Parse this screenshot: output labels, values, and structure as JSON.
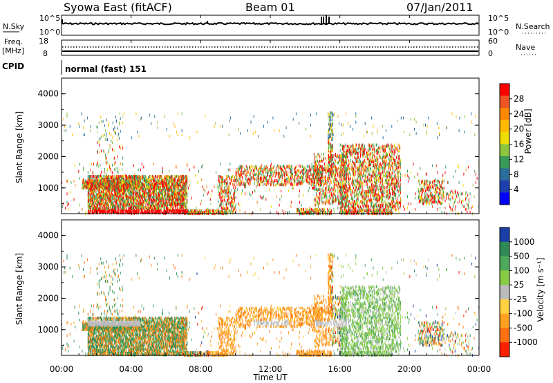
{
  "header": {
    "station": "Syowa East (fitACF)",
    "beam": "Beam 01",
    "date": "07/Jan/2011"
  },
  "noise_panel": {
    "left_label": "N.Sky",
    "right_label": "N.Search",
    "left_ticks": [
      "10^5",
      "10^0"
    ],
    "right_ticks": [
      "10^5",
      "10^0"
    ]
  },
  "freq_panel": {
    "left_label_1": "Freq.",
    "left_label_2": "[MHz]",
    "left_ticks": [
      "18",
      "8"
    ],
    "right_label": "Nave",
    "right_ticks": [
      "60",
      "0"
    ]
  },
  "cpid_panel": {
    "label": "CPID",
    "value": "normal (fast) 151"
  },
  "chart_data": [
    {
      "type": "heatmap",
      "name": "power",
      "ylabel": "Slant Range [km]",
      "yticks": [
        "4000",
        "3000",
        "2000",
        "1000"
      ],
      "ylim": [
        180,
        4500
      ],
      "xlim": [
        "00:00",
        "24:00"
      ],
      "colorbar_label": "Power [dB]",
      "colorbar_ticks": [
        "28",
        "24",
        "20",
        "16",
        "12",
        "8",
        "4"
      ],
      "colorbar_colors": [
        "#ff0000",
        "#ee5522",
        "#ff8800",
        "#ffbb00",
        "#eedd00",
        "#8cc63f",
        "#3a9a5a",
        "#2b6e9e",
        "#1e3fb0",
        "#0000ff"
      ]
    },
    {
      "type": "heatmap",
      "name": "velocity",
      "ylabel": "Slant Range [km]",
      "yticks": [
        "4000",
        "3000",
        "2000",
        "1000"
      ],
      "ylim": [
        180,
        4500
      ],
      "xlim": [
        "00:00",
        "24:00"
      ],
      "xlabel": "Time UT",
      "xticks": [
        "00:00",
        "04:00",
        "08:00",
        "12:00",
        "16:00",
        "20:00",
        "00:00"
      ],
      "colorbar_label": "Velocity [m s⁻¹]",
      "colorbar_ticks": [
        "1000",
        "500",
        "100",
        "25",
        "-25",
        "-100",
        "-500",
        "-1000"
      ],
      "colorbar_colors": [
        "#1a3fa8",
        "#2e8b57",
        "#4caa5a",
        "#88cc44",
        "#bbbbbb",
        "#ffd040",
        "#ffa020",
        "#ff7010",
        "#ff2000"
      ]
    }
  ]
}
